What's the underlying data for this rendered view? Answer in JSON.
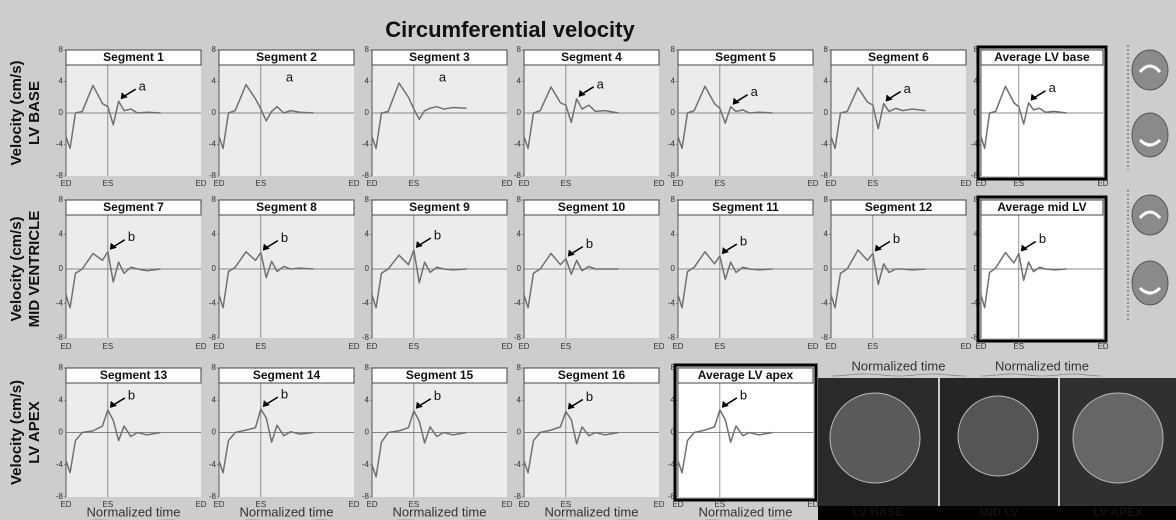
{
  "title": "Circumferential velocity",
  "row_labels": [
    {
      "unit": "Velocity (cm/s)",
      "name": "LV BASE"
    },
    {
      "unit": "Velocity (cm/s)",
      "name": "MID VENTRICLE"
    },
    {
      "unit": "Velocity (cm/s)",
      "name": "LV APEX"
    }
  ],
  "x_label": "Normalized time",
  "image_labels": [
    "LV BASE",
    "MID LV",
    "LV APEX"
  ],
  "chart_data": [
    {
      "type": "line",
      "title": "Segment 1",
      "annotation": "a",
      "arrow": true,
      "highlight": false,
      "color": "#707070",
      "x": [
        0,
        0.03,
        0.07,
        0.12,
        0.2,
        0.27,
        0.31,
        0.35,
        0.39,
        0.43,
        0.48,
        0.53,
        0.6,
        0.7
      ],
      "values": [
        -3,
        -4.5,
        0,
        0.2,
        3.5,
        1.2,
        0.8,
        -1.5,
        1.5,
        0.3,
        0.5,
        0,
        0.1,
        0
      ],
      "ylim": [
        -8,
        8
      ],
      "yticks": [
        -8,
        -4,
        0,
        4,
        8
      ],
      "xlim": [
        0,
        1
      ],
      "xticks": [
        {
          "value": 0,
          "label": "ED"
        },
        {
          "value": 0.31,
          "label": "ES"
        },
        {
          "value": 1,
          "label": "ED"
        }
      ]
    },
    {
      "type": "line",
      "title": "Segment 2",
      "annotation": "a",
      "arrow": false,
      "highlight": false,
      "color": "#707070",
      "x": [
        0,
        0.03,
        0.07,
        0.12,
        0.2,
        0.27,
        0.31,
        0.35,
        0.39,
        0.43,
        0.48,
        0.53,
        0.6,
        0.7
      ],
      "values": [
        -3,
        -4.5,
        0,
        0.3,
        3.6,
        1.8,
        0.5,
        -1,
        0.2,
        0.8,
        0,
        0.3,
        0.1,
        0
      ],
      "ylim": [
        -8,
        8
      ],
      "yticks": [
        -8,
        -4,
        0,
        4,
        8
      ],
      "xlim": [
        0,
        1
      ],
      "xticks": [
        {
          "value": 0,
          "label": "ED"
        },
        {
          "value": 0.31,
          "label": "ES"
        },
        {
          "value": 1,
          "label": "ED"
        }
      ]
    },
    {
      "type": "line",
      "title": "Segment 3",
      "annotation": "a",
      "arrow": false,
      "highlight": false,
      "color": "#707070",
      "x": [
        0,
        0.03,
        0.07,
        0.12,
        0.2,
        0.27,
        0.31,
        0.35,
        0.39,
        0.43,
        0.48,
        0.53,
        0.6,
        0.7
      ],
      "values": [
        -3,
        -4.5,
        0,
        0.2,
        3.8,
        2,
        0.5,
        -0.8,
        0.3,
        0.6,
        0.8,
        0.5,
        0.7,
        0.6
      ],
      "ylim": [
        -8,
        8
      ],
      "yticks": [
        -8,
        -4,
        0,
        4,
        8
      ],
      "xlim": [
        0,
        1
      ],
      "xticks": [
        {
          "value": 0,
          "label": "ED"
        },
        {
          "value": 0.31,
          "label": "ES"
        },
        {
          "value": 1,
          "label": "ED"
        }
      ]
    },
    {
      "type": "line",
      "title": "Segment 4",
      "annotation": "a",
      "arrow": true,
      "highlight": false,
      "color": "#707070",
      "x": [
        0,
        0.03,
        0.07,
        0.12,
        0.2,
        0.27,
        0.31,
        0.35,
        0.39,
        0.43,
        0.48,
        0.53,
        0.6,
        0.7
      ],
      "values": [
        -3,
        -4.5,
        0,
        0.3,
        3.3,
        1.3,
        1,
        -1.2,
        1.8,
        0.5,
        1,
        0.2,
        0.3,
        0
      ],
      "ylim": [
        -8,
        8
      ],
      "yticks": [
        -8,
        -4,
        0,
        4,
        8
      ],
      "xlim": [
        0,
        1
      ],
      "xticks": [
        {
          "value": 0,
          "label": "ED"
        },
        {
          "value": 0.31,
          "label": "ES"
        },
        {
          "value": 1,
          "label": "ED"
        }
      ]
    },
    {
      "type": "line",
      "title": "Segment 5",
      "annotation": "a",
      "arrow": true,
      "highlight": false,
      "color": "#707070",
      "x": [
        0,
        0.03,
        0.07,
        0.12,
        0.2,
        0.27,
        0.31,
        0.35,
        0.39,
        0.43,
        0.48,
        0.53,
        0.6,
        0.7
      ],
      "values": [
        -3,
        -4.5,
        0,
        0.3,
        3.4,
        1.2,
        0.6,
        -1.3,
        0.8,
        0.2,
        0.4,
        0,
        0.1,
        0
      ],
      "ylim": [
        -8,
        8
      ],
      "yticks": [
        -8,
        -4,
        0,
        4,
        8
      ],
      "xlim": [
        0,
        1
      ],
      "xticks": [
        {
          "value": 0,
          "label": "ED"
        },
        {
          "value": 0.31,
          "label": "ES"
        },
        {
          "value": 1,
          "label": "ED"
        }
      ]
    },
    {
      "type": "line",
      "title": "Segment 6",
      "annotation": "a",
      "arrow": true,
      "highlight": false,
      "color": "#707070",
      "x": [
        0,
        0.03,
        0.07,
        0.12,
        0.2,
        0.27,
        0.31,
        0.35,
        0.39,
        0.43,
        0.48,
        0.53,
        0.6,
        0.7
      ],
      "values": [
        -3,
        -4.5,
        0,
        0.2,
        3.2,
        1.4,
        1,
        -2,
        1.2,
        0.2,
        0.6,
        0.3,
        0.5,
        0.3
      ],
      "ylim": [
        -8,
        8
      ],
      "yticks": [
        -8,
        -4,
        0,
        4,
        8
      ],
      "xlim": [
        0,
        1
      ],
      "xticks": [
        {
          "value": 0,
          "label": "ED"
        },
        {
          "value": 0.31,
          "label": "ES"
        },
        {
          "value": 1,
          "label": "ED"
        }
      ]
    },
    {
      "type": "line",
      "title": "Average LV base",
      "annotation": "a",
      "arrow": true,
      "highlight": true,
      "color": "#707070",
      "x": [
        0,
        0.03,
        0.07,
        0.12,
        0.2,
        0.27,
        0.31,
        0.35,
        0.39,
        0.43,
        0.48,
        0.53,
        0.6,
        0.7
      ],
      "values": [
        -3,
        -4.5,
        0,
        0.2,
        3.4,
        1.3,
        0.8,
        -1.4,
        1.3,
        0.4,
        0.6,
        0.1,
        0.2,
        0
      ],
      "ylim": [
        -8,
        8
      ],
      "yticks": [
        -8,
        -4,
        0,
        4,
        8
      ],
      "xlim": [
        0,
        1
      ],
      "xticks": [
        {
          "value": 0,
          "label": "ED"
        },
        {
          "value": 0.31,
          "label": "ES"
        },
        {
          "value": 1,
          "label": "ED"
        }
      ]
    },
    {
      "type": "line",
      "title": "Segment 7",
      "annotation": "b",
      "arrow": true,
      "highlight": false,
      "color": "#707070",
      "x": [
        0,
        0.03,
        0.07,
        0.12,
        0.2,
        0.27,
        0.31,
        0.35,
        0.39,
        0.43,
        0.48,
        0.53,
        0.6,
        0.7
      ],
      "values": [
        -3,
        -4.5,
        -0.5,
        0,
        1.8,
        1,
        2,
        -1.5,
        0.8,
        -0.5,
        0.2,
        0,
        -0.2,
        0
      ],
      "ylim": [
        -8,
        8
      ],
      "yticks": [
        -8,
        -4,
        0,
        4,
        8
      ],
      "xlim": [
        0,
        1
      ],
      "xticks": [
        {
          "value": 0,
          "label": "ED"
        },
        {
          "value": 0.31,
          "label": "ES"
        },
        {
          "value": 1,
          "label": "ED"
        }
      ]
    },
    {
      "type": "line",
      "title": "Segment 8",
      "annotation": "b",
      "arrow": true,
      "highlight": false,
      "color": "#707070",
      "x": [
        0,
        0.03,
        0.07,
        0.12,
        0.2,
        0.27,
        0.31,
        0.35,
        0.39,
        0.43,
        0.48,
        0.53,
        0.6,
        0.7
      ],
      "values": [
        -3,
        -4.5,
        -0.3,
        0.2,
        2,
        1,
        1.9,
        -1,
        0.9,
        -0.3,
        0.3,
        0,
        0.1,
        0
      ],
      "ylim": [
        -8,
        8
      ],
      "yticks": [
        -8,
        -4,
        0,
        4,
        8
      ],
      "xlim": [
        0,
        1
      ],
      "xticks": [
        {
          "value": 0,
          "label": "ED"
        },
        {
          "value": 0.31,
          "label": "ES"
        },
        {
          "value": 1,
          "label": "ED"
        }
      ]
    },
    {
      "type": "line",
      "title": "Segment 9",
      "annotation": "b",
      "arrow": true,
      "highlight": false,
      "color": "#707070",
      "x": [
        0,
        0.03,
        0.07,
        0.12,
        0.2,
        0.27,
        0.31,
        0.35,
        0.39,
        0.43,
        0.48,
        0.53,
        0.6,
        0.7
      ],
      "values": [
        -3,
        -4.5,
        -0.5,
        0,
        1.6,
        0.5,
        2.2,
        -1.6,
        0.8,
        -0.4,
        0.2,
        0,
        -0.1,
        0
      ],
      "ylim": [
        -8,
        8
      ],
      "yticks": [
        -8,
        -4,
        0,
        4,
        8
      ],
      "xlim": [
        0,
        1
      ],
      "xticks": [
        {
          "value": 0,
          "label": "ED"
        },
        {
          "value": 0.31,
          "label": "ES"
        },
        {
          "value": 1,
          "label": "ED"
        }
      ]
    },
    {
      "type": "line",
      "title": "Segment 10",
      "annotation": "b",
      "arrow": true,
      "highlight": false,
      "color": "#707070",
      "x": [
        0,
        0.03,
        0.07,
        0.12,
        0.2,
        0.27,
        0.31,
        0.35,
        0.39,
        0.43,
        0.48,
        0.53,
        0.6,
        0.7
      ],
      "values": [
        -3,
        -4.5,
        -0.5,
        0,
        1.8,
        0.5,
        1.2,
        -0.6,
        1,
        -0.2,
        0.3,
        0,
        0,
        0
      ],
      "ylim": [
        -8,
        8
      ],
      "yticks": [
        -8,
        -4,
        0,
        4,
        8
      ],
      "xlim": [
        0,
        1
      ],
      "xticks": [
        {
          "value": 0,
          "label": "ED"
        },
        {
          "value": 0.31,
          "label": "ES"
        },
        {
          "value": 1,
          "label": "ED"
        }
      ]
    },
    {
      "type": "line",
      "title": "Segment 11",
      "annotation": "b",
      "arrow": true,
      "highlight": false,
      "color": "#707070",
      "x": [
        0,
        0.03,
        0.07,
        0.12,
        0.2,
        0.27,
        0.31,
        0.35,
        0.39,
        0.43,
        0.48,
        0.53,
        0.6,
        0.7
      ],
      "values": [
        -3,
        -4.5,
        -0.3,
        0.2,
        2,
        0.6,
        1.5,
        -1.2,
        0.8,
        -0.4,
        0.2,
        0,
        -0.1,
        0
      ],
      "ylim": [
        -8,
        8
      ],
      "yticks": [
        -8,
        -4,
        0,
        4,
        8
      ],
      "xlim": [
        0,
        1
      ],
      "xticks": [
        {
          "value": 0,
          "label": "ED"
        },
        {
          "value": 0.31,
          "label": "ES"
        },
        {
          "value": 1,
          "label": "ED"
        }
      ]
    },
    {
      "type": "line",
      "title": "Segment 12",
      "annotation": "b",
      "arrow": true,
      "highlight": false,
      "color": "#707070",
      "x": [
        0,
        0.03,
        0.07,
        0.12,
        0.2,
        0.27,
        0.31,
        0.35,
        0.39,
        0.43,
        0.48,
        0.53,
        0.6,
        0.7
      ],
      "values": [
        -3,
        -4.5,
        -0.5,
        0,
        2.2,
        1,
        1.8,
        -1.8,
        0.6,
        -0.4,
        0,
        0,
        -0.1,
        0
      ],
      "ylim": [
        -8,
        8
      ],
      "yticks": [
        -8,
        -4,
        0,
        4,
        8
      ],
      "xlim": [
        0,
        1
      ],
      "xticks": [
        {
          "value": 0,
          "label": "ED"
        },
        {
          "value": 0.31,
          "label": "ES"
        },
        {
          "value": 1,
          "label": "ED"
        }
      ]
    },
    {
      "type": "line",
      "title": "Average mid LV",
      "annotation": "b",
      "arrow": true,
      "highlight": true,
      "color": "#707070",
      "x": [
        0,
        0.03,
        0.07,
        0.12,
        0.2,
        0.27,
        0.31,
        0.35,
        0.39,
        0.43,
        0.48,
        0.53,
        0.6,
        0.7
      ],
      "values": [
        -3,
        -4.5,
        -0.4,
        0.1,
        1.9,
        0.7,
        1.8,
        -1.3,
        0.8,
        -0.3,
        0.2,
        0,
        -0.1,
        0
      ],
      "ylim": [
        -8,
        8
      ],
      "yticks": [
        -8,
        -4,
        0,
        4,
        8
      ],
      "xlim": [
        0,
        1
      ],
      "xticks": [
        {
          "value": 0,
          "label": "ED"
        },
        {
          "value": 0.31,
          "label": "ES"
        },
        {
          "value": 1,
          "label": "ED"
        }
      ]
    },
    {
      "type": "line",
      "title": "Segment 13",
      "annotation": "b",
      "arrow": true,
      "highlight": false,
      "color": "#707070",
      "x": [
        0,
        0.03,
        0.07,
        0.12,
        0.2,
        0.27,
        0.31,
        0.35,
        0.39,
        0.43,
        0.48,
        0.53,
        0.6,
        0.7
      ],
      "values": [
        -3.5,
        -5,
        -1,
        0,
        0.2,
        0.8,
        2.8,
        1.5,
        -1,
        0.8,
        -0.5,
        0,
        -0.3,
        0
      ],
      "ylim": [
        -8,
        8
      ],
      "yticks": [
        -8,
        -4,
        0,
        4,
        8
      ],
      "xlim": [
        0,
        1
      ],
      "xticks": [
        {
          "value": 0,
          "label": "ED"
        },
        {
          "value": 0.31,
          "label": "ES"
        },
        {
          "value": 1,
          "label": "ED"
        }
      ]
    },
    {
      "type": "line",
      "title": "Segment 14",
      "annotation": "b",
      "arrow": true,
      "highlight": false,
      "color": "#707070",
      "x": [
        0,
        0.03,
        0.07,
        0.12,
        0.2,
        0.27,
        0.31,
        0.35,
        0.39,
        0.43,
        0.48,
        0.53,
        0.6,
        0.7
      ],
      "values": [
        -3.5,
        -5,
        -1,
        0,
        0.3,
        0.6,
        2.9,
        1.8,
        -1.2,
        0.9,
        -0.4,
        0.1,
        -0.2,
        0
      ],
      "ylim": [
        -8,
        8
      ],
      "yticks": [
        -8,
        -4,
        0,
        4,
        8
      ],
      "xlim": [
        0,
        1
      ],
      "xticks": [
        {
          "value": 0,
          "label": "ED"
        },
        {
          "value": 0.31,
          "label": "ES"
        },
        {
          "value": 1,
          "label": "ED"
        }
      ]
    },
    {
      "type": "line",
      "title": "Segment 15",
      "annotation": "b",
      "arrow": true,
      "highlight": false,
      "color": "#707070",
      "x": [
        0,
        0.03,
        0.07,
        0.12,
        0.2,
        0.27,
        0.31,
        0.35,
        0.39,
        0.43,
        0.48,
        0.53,
        0.6,
        0.7
      ],
      "values": [
        -4,
        -5.5,
        -1.2,
        0,
        0.2,
        0.6,
        2.7,
        1.4,
        -1.3,
        0.7,
        -0.5,
        0,
        -0.3,
        0
      ],
      "ylim": [
        -8,
        8
      ],
      "yticks": [
        -8,
        -4,
        0,
        4,
        8
      ],
      "xlim": [
        0,
        1
      ],
      "xticks": [
        {
          "value": 0,
          "label": "ED"
        },
        {
          "value": 0.31,
          "label": "ES"
        },
        {
          "value": 1,
          "label": "ED"
        }
      ]
    },
    {
      "type": "line",
      "title": "Segment 16",
      "annotation": "b",
      "arrow": true,
      "highlight": false,
      "color": "#707070",
      "x": [
        0,
        0.03,
        0.07,
        0.12,
        0.2,
        0.27,
        0.31,
        0.35,
        0.39,
        0.43,
        0.48,
        0.53,
        0.6,
        0.7
      ],
      "values": [
        -3.5,
        -5,
        -1,
        0,
        0.3,
        0.7,
        2.6,
        1.6,
        -1.4,
        0.7,
        -0.4,
        0,
        -0.3,
        0
      ],
      "ylim": [
        -8,
        8
      ],
      "yticks": [
        -8,
        -4,
        0,
        4,
        8
      ],
      "xlim": [
        0,
        1
      ],
      "xticks": [
        {
          "value": 0,
          "label": "ED"
        },
        {
          "value": 0.31,
          "label": "ES"
        },
        {
          "value": 1,
          "label": "ED"
        }
      ]
    },
    {
      "type": "line",
      "title": "Average LV apex",
      "annotation": "b",
      "arrow": true,
      "highlight": true,
      "color": "#707070",
      "x": [
        0,
        0.03,
        0.07,
        0.12,
        0.2,
        0.27,
        0.31,
        0.35,
        0.39,
        0.43,
        0.48,
        0.53,
        0.6,
        0.7
      ],
      "values": [
        -3.5,
        -5,
        -1,
        0,
        0.3,
        0.7,
        2.8,
        1.6,
        -1.2,
        0.8,
        -0.4,
        0,
        -0.3,
        0
      ],
      "ylim": [
        -8,
        8
      ],
      "yticks": [
        -8,
        -4,
        0,
        4,
        8
      ],
      "xlim": [
        0,
        1
      ],
      "xticks": [
        {
          "value": 0,
          "label": "ED"
        },
        {
          "value": 0.31,
          "label": "ES"
        },
        {
          "value": 1,
          "label": "ED"
        }
      ]
    }
  ]
}
